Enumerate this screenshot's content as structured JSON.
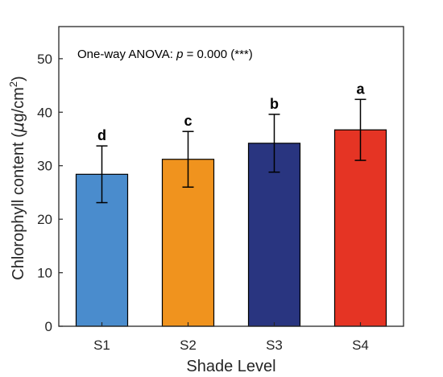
{
  "chart_data": {
    "type": "bar",
    "categories": [
      "S1",
      "S2",
      "S3",
      "S4"
    ],
    "values": [
      28.4,
      31.2,
      34.2,
      36.7
    ],
    "errors": [
      5.3,
      5.2,
      5.4,
      5.7
    ],
    "significance_letters": [
      "d",
      "c",
      "b",
      "a"
    ],
    "bar_colors": [
      "#4a8ccd",
      "#f0931e",
      "#293580",
      "#e53424"
    ],
    "title": "",
    "xlabel": "Shade Level",
    "ylabel_prefix": "Chlorophyll content (",
    "ylabel_mu": "μ",
    "ylabel_unit": "g/cm",
    "ylabel_sup": "2",
    "ylabel_suffix": ")",
    "ylim": [
      0,
      56
    ],
    "yticks": [
      0,
      10,
      20,
      30,
      40,
      50
    ],
    "annotation": {
      "prefix": "One-way ANOVA: ",
      "p_symbol": "p",
      "suffix": " = 0.000 (***)"
    },
    "grid": false,
    "legend": "none"
  }
}
